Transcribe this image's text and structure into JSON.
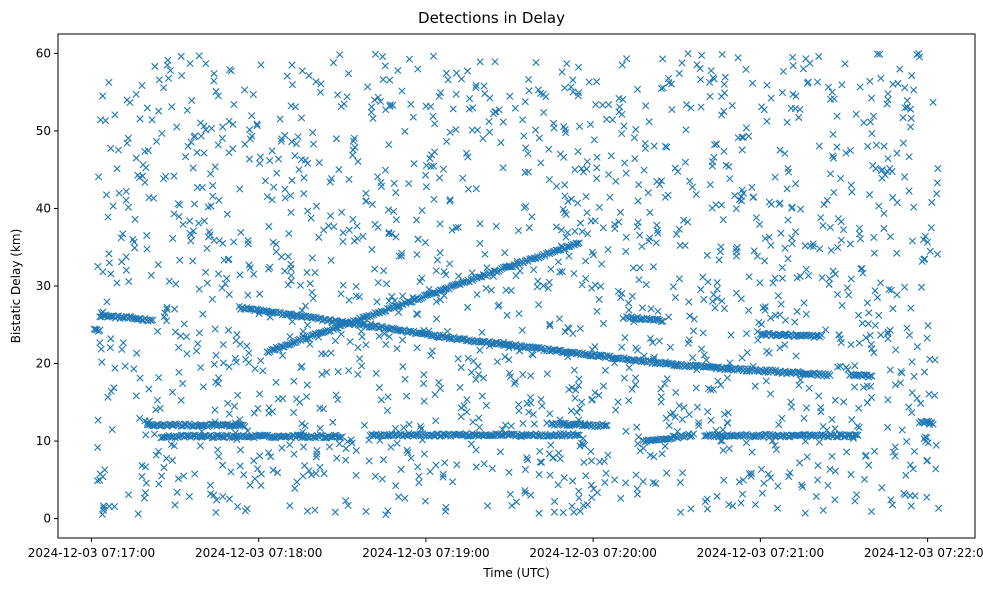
{
  "chart_data": {
    "type": "scatter",
    "title": "Detections in Delay",
    "xlabel": "Time (UTC)",
    "ylabel": "Bistatic Delay (km)",
    "marker": "x",
    "color": "#1f77b4",
    "x_range": [
      "2024-12-03 07:16:48",
      "2024-12-03 07:22:17"
    ],
    "ylim": [
      -2.5,
      62.5
    ],
    "x_ticks": [
      "2024-12-03 07:17:00",
      "2024-12-03 07:18:00",
      "2024-12-03 07:19:00",
      "2024-12-03 07:20:00",
      "2024-12-03 07:21:00",
      "2024-12-03 07:22:00"
    ],
    "y_ticks": [
      0,
      10,
      20,
      30,
      40,
      50,
      60
    ],
    "grid": false,
    "track_series": [
      {
        "segments": [
          {
            "x": [
              "2024-12-03 07:17:03",
              "2024-12-03 07:17:22"
            ],
            "y": [
              26.2,
              25.6
            ]
          },
          {
            "x": [
              "2024-12-03 07:17:53",
              "2024-12-03 07:19:20"
            ],
            "y": [
              27.2,
              22.8
            ]
          },
          {
            "x": [
              "2024-12-03 07:19:20",
              "2024-12-03 07:20:30"
            ],
            "y": [
              22.8,
              19.8
            ]
          },
          {
            "x": [
              "2024-12-03 07:20:30",
              "2024-12-03 07:21:25"
            ],
            "y": [
              19.8,
              18.5
            ]
          }
        ]
      },
      {
        "segments": [
          {
            "x": [
              "2024-12-03 07:18:03",
              "2024-12-03 07:19:30"
            ],
            "y": [
              21.5,
              32.5
            ]
          },
          {
            "x": [
              "2024-12-03 07:19:30",
              "2024-12-03 07:19:55"
            ],
            "y": [
              32.5,
              35.5
            ]
          }
        ]
      },
      {
        "segments": [
          {
            "x": [
              "2024-12-03 07:17:20",
              "2024-12-03 07:17:55"
            ],
            "y": [
              12.1,
              12.0
            ]
          },
          {
            "x": [
              "2024-12-03 07:19:45",
              "2024-12-03 07:20:05"
            ],
            "y": [
              12.2,
              12.0
            ]
          },
          {
            "x": [
              "2024-12-03 07:20:12",
              "2024-12-03 07:20:25"
            ],
            "y": [
              26.0,
              25.5
            ]
          },
          {
            "x": [
              "2024-12-03 07:21:00",
              "2024-12-03 07:21:22"
            ],
            "y": [
              23.8,
              23.5
            ]
          },
          {
            "x": [
              "2024-12-03 07:21:32",
              "2024-12-03 07:21:40"
            ],
            "y": [
              18.5,
              18.3
            ]
          },
          {
            "x": [
              "2024-12-03 07:21:57",
              "2024-12-03 07:22:02"
            ],
            "y": [
              12.5,
              12.3
            ]
          },
          {
            "x": [
              "2024-12-03 07:20:18",
              "2024-12-03 07:20:36"
            ],
            "y": [
              10.0,
              10.8
            ]
          },
          {
            "x": [
              "2024-12-03 07:17:01",
              "2024-12-03 07:17:03"
            ],
            "y": [
              24.3,
              24.3
            ]
          }
        ]
      },
      {
        "segments": [
          {
            "x": [
              "2024-12-03 07:17:25",
              "2024-12-03 07:18:30"
            ],
            "y": [
              10.6,
              10.6
            ]
          },
          {
            "x": [
              "2024-12-03 07:18:40",
              "2024-12-03 07:19:55"
            ],
            "y": [
              10.8,
              10.8
            ]
          },
          {
            "x": [
              "2024-12-03 07:20:40",
              "2024-12-03 07:21:35"
            ],
            "y": [
              10.7,
              10.7
            ]
          }
        ]
      }
    ],
    "noise_points": {
      "count": 1700,
      "x_range": [
        "2024-12-03 07:17:02",
        "2024-12-03 07:22:04"
      ],
      "y_range": [
        0.5,
        60
      ]
    }
  }
}
